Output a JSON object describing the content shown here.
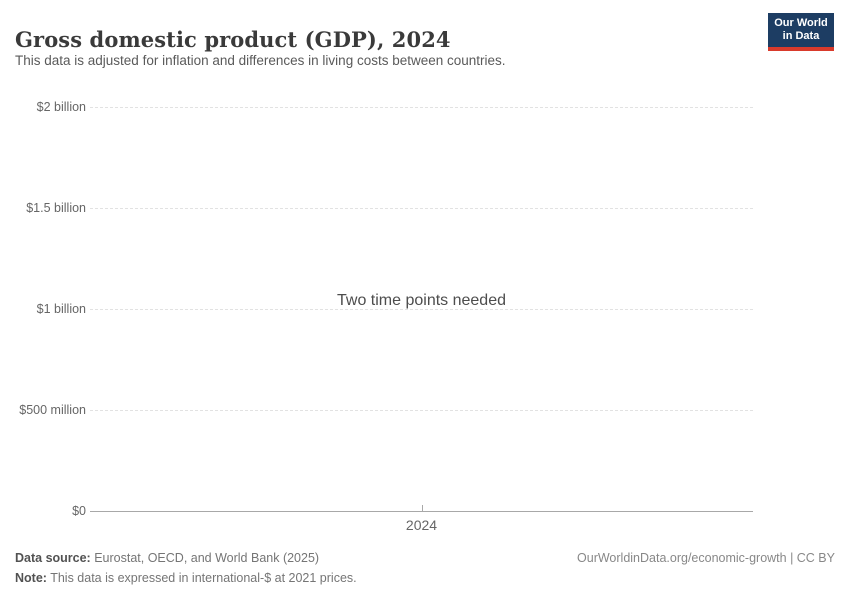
{
  "header": {
    "title": "Gross domestic product (GDP), 2024",
    "subtitle": "This data is adjusted for inflation and differences in living costs between countries.",
    "logo": {
      "line1": "Our World",
      "line2": "in Data",
      "bg_color": "#1d3d63",
      "accent_color": "#d93a2b"
    }
  },
  "chart_data": {
    "type": "line",
    "title": "Gross domestic product (GDP), 2024",
    "subtitle": "This data is adjusted for inflation and differences in living costs between countries.",
    "series": [],
    "x": [
      2024
    ],
    "empty_message": "Two time points needed",
    "ylim": [
      0,
      2000000000
    ],
    "yticks": [
      {
        "value": 2000000000,
        "label": "$2 billion"
      },
      {
        "value": 1500000000,
        "label": "$1.5 billion"
      },
      {
        "value": 1000000000,
        "label": "$1 billion"
      },
      {
        "value": 500000000,
        "label": "$500 million"
      },
      {
        "value": 0,
        "label": "$0"
      }
    ],
    "xticks": [
      {
        "value": 2024,
        "label": "2024",
        "frac": 0.5
      }
    ],
    "grid": "horizontal-dashed",
    "legend": "none"
  },
  "footer": {
    "source_label": "Data source:",
    "source_text": " Eurostat, OECD, and World Bank (2025)",
    "note_label": "Note:",
    "note_text": " This data is expressed in international-$ at 2021 prices.",
    "link_text": "OurWorldinData.org/economic-growth | CC BY"
  },
  "colors": {
    "grid": "#e2e2e2",
    "axis": "#a8a8a8",
    "tick_label": "#666666",
    "message": "#4d4d4d"
  }
}
